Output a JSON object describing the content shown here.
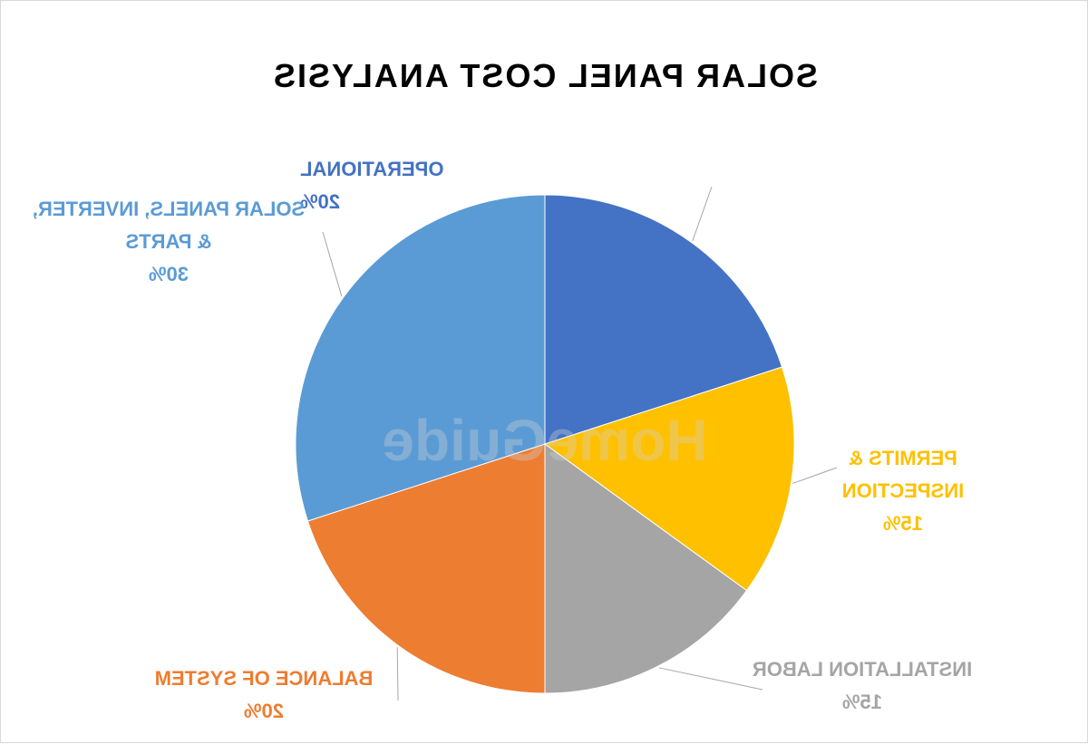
{
  "chart_data": {
    "type": "pie",
    "title": "SOLAR PANEL COST ANALYSIS",
    "mirrored": true,
    "watermark": "HomeGuide",
    "slices": [
      {
        "label": "OPERATIONAL",
        "value": 20,
        "value_label": "20%",
        "color": "#4472C4"
      },
      {
        "label": "PERMITS & INSPECTION",
        "value": 15,
        "value_label": "15%",
        "color": "#FFC000"
      },
      {
        "label": "INSTALLATION LABOR",
        "value": 15,
        "value_label": "15%",
        "color": "#A5A5A5"
      },
      {
        "label": "BALANCE OF SYSTEM",
        "value": 20,
        "value_label": "20%",
        "color": "#ED7D31"
      },
      {
        "label": "SOLAR PANELS, INVERTER, & PARTS",
        "value": 30,
        "value_label": "30%",
        "color": "#5B9BD5"
      }
    ]
  }
}
